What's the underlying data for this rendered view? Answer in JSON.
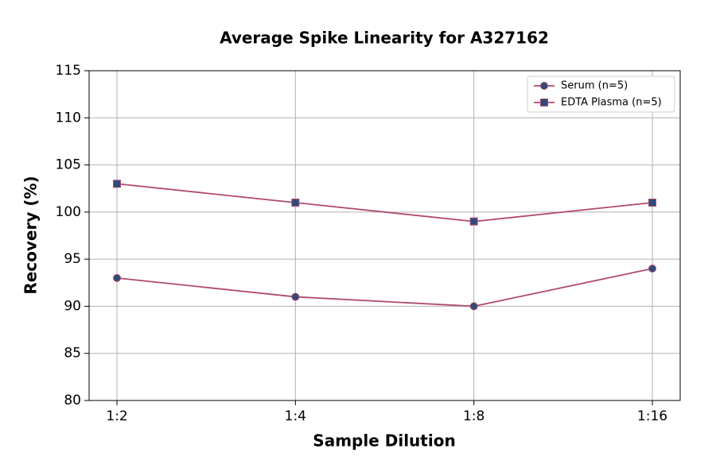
{
  "chart_data": {
    "type": "line",
    "title": "Average Spike Linearity for A327162",
    "x_label": "Sample Dilution",
    "y_label": "Recovery (%)",
    "categories": [
      "1:2",
      "1:4",
      "1:8",
      "1:16"
    ],
    "series": [
      {
        "name": "Serum (n=5)",
        "color": "#b04a6e",
        "marker_color": "#2f4b7c",
        "marker": "circle",
        "values": [
          93,
          91,
          90,
          94
        ]
      },
      {
        "name": "EDTA Plasma (n=5)",
        "color": "#b04a6e",
        "marker_color": "#2f4b7c",
        "marker": "square",
        "values": [
          103,
          101,
          99,
          101
        ]
      }
    ],
    "ylim": [
      80,
      115
    ],
    "yticks": [
      80,
      85,
      90,
      95,
      100,
      105,
      110,
      115
    ],
    "grid": true,
    "legend": "upper right"
  }
}
